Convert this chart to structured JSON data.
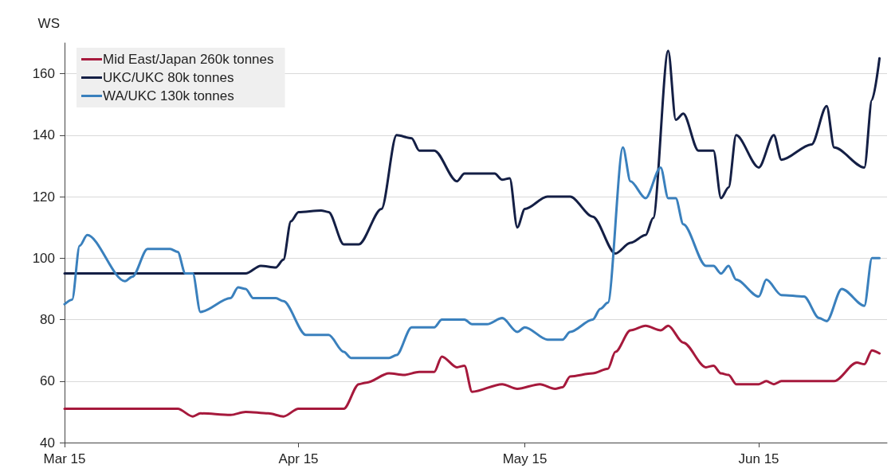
{
  "chart_data": {
    "type": "line",
    "ylabel": "WS",
    "xlim": [
      "2015-03-01",
      "2015-06-18"
    ],
    "xticks": [
      {
        "value": "2015-03-01",
        "label": "Mar 15"
      },
      {
        "value": "2015-04-01",
        "label": "Apr 15"
      },
      {
        "value": "2015-05-01",
        "label": "May 15"
      },
      {
        "value": "2015-06-01",
        "label": "Jun 15"
      }
    ],
    "ylim": [
      40,
      170
    ],
    "yticks": [
      40,
      60,
      80,
      100,
      120,
      140,
      160
    ],
    "grid": "y",
    "legend": "top left",
    "marker": "none",
    "line_style": "solid",
    "series": [
      {
        "name": "Mid East/Japan 260k tonnes",
        "color": "#a6193c",
        "x": [
          "2015-03-01",
          "2015-03-16",
          "2015-03-18",
          "2015-03-19",
          "2015-03-23",
          "2015-03-25",
          "2015-03-28",
          "2015-03-30",
          "2015-04-01",
          "2015-04-07",
          "2015-04-09",
          "2015-04-10",
          "2015-04-13",
          "2015-04-15",
          "2015-04-17",
          "2015-04-19",
          "2015-04-20",
          "2015-04-22",
          "2015-04-23",
          "2015-04-24",
          "2015-04-28",
          "2015-04-30",
          "2015-05-03",
          "2015-05-05",
          "2015-05-06",
          "2015-05-07",
          "2015-05-10",
          "2015-05-12",
          "2015-05-13",
          "2015-05-15",
          "2015-05-17",
          "2015-05-19",
          "2015-05-20",
          "2015-05-22",
          "2015-05-25",
          "2015-05-26",
          "2015-05-27",
          "2015-05-28",
          "2015-05-29",
          "2015-06-01",
          "2015-06-02",
          "2015-06-03",
          "2015-06-04",
          "2015-06-11",
          "2015-06-14",
          "2015-06-15",
          "2015-06-16",
          "2015-06-17"
        ],
        "values": [
          51,
          51,
          48.5,
          49.5,
          49,
          50,
          49.5,
          48.5,
          51,
          51,
          59,
          59.5,
          62.5,
          62,
          63,
          63,
          68,
          64.5,
          65,
          56.5,
          59,
          57.5,
          59,
          57.5,
          58,
          61.5,
          62.5,
          64,
          69.5,
          76.5,
          78,
          76.5,
          78,
          72.5,
          64.5,
          65,
          62.5,
          62,
          59,
          59,
          60,
          59,
          60,
          60,
          66,
          65.5,
          70,
          69
        ]
      },
      {
        "name": "UKC/UKC 80k tonnes",
        "color": "#141f45",
        "x": [
          "2015-03-01",
          "2015-03-25",
          "2015-03-27",
          "2015-03-29",
          "2015-03-30",
          "2015-03-31",
          "2015-04-01",
          "2015-04-04",
          "2015-04-05",
          "2015-04-07",
          "2015-04-09",
          "2015-04-12",
          "2015-04-14",
          "2015-04-16",
          "2015-04-17",
          "2015-04-19",
          "2015-04-22",
          "2015-04-23",
          "2015-04-27",
          "2015-04-28",
          "2015-04-29",
          "2015-04-30",
          "2015-05-01",
          "2015-05-04",
          "2015-05-07",
          "2015-05-10",
          "2015-05-13",
          "2015-05-15",
          "2015-05-17",
          "2015-05-18",
          "2015-05-20",
          "2015-05-21",
          "2015-05-22",
          "2015-05-24",
          "2015-05-26",
          "2015-05-27",
          "2015-05-28",
          "2015-05-29",
          "2015-06-01",
          "2015-06-03",
          "2015-06-04",
          "2015-06-08",
          "2015-06-10",
          "2015-06-11",
          "2015-06-15",
          "2015-06-16",
          "2015-06-17"
        ],
        "values": [
          95,
          95,
          97.5,
          97,
          99.5,
          112,
          115,
          115.5,
          115,
          104.5,
          104.5,
          116,
          140,
          139,
          135,
          135,
          125,
          127.5,
          127.5,
          125.5,
          126,
          110,
          116,
          120,
          120,
          113.5,
          101.5,
          105,
          107.5,
          113,
          167.5,
          145,
          147,
          135,
          135,
          119.5,
          123,
          140,
          129.5,
          140,
          132,
          137,
          149.5,
          136,
          129.5,
          151.5,
          165
        ]
      },
      {
        "name": "WA/UKC 130k tonnes",
        "color": "#3a80bd",
        "x": [
          "2015-03-01",
          "2015-03-02",
          "2015-03-03",
          "2015-03-04",
          "2015-03-09",
          "2015-03-10",
          "2015-03-12",
          "2015-03-15",
          "2015-03-16",
          "2015-03-17",
          "2015-03-18",
          "2015-03-19",
          "2015-03-23",
          "2015-03-24",
          "2015-03-25",
          "2015-03-26",
          "2015-03-29",
          "2015-03-30",
          "2015-04-02",
          "2015-04-05",
          "2015-04-07",
          "2015-04-08",
          "2015-04-13",
          "2015-04-14",
          "2015-04-16",
          "2015-04-19",
          "2015-04-20",
          "2015-04-23",
          "2015-04-24",
          "2015-04-26",
          "2015-04-28",
          "2015-04-30",
          "2015-05-01",
          "2015-05-04",
          "2015-05-06",
          "2015-05-07",
          "2015-05-10",
          "2015-05-11",
          "2015-05-12",
          "2015-05-14",
          "2015-05-15",
          "2015-05-17",
          "2015-05-19",
          "2015-05-20",
          "2015-05-21",
          "2015-05-22",
          "2015-05-25",
          "2015-05-26",
          "2015-05-27",
          "2015-05-28",
          "2015-05-29",
          "2015-06-01",
          "2015-06-02",
          "2015-06-04",
          "2015-06-07",
          "2015-06-09",
          "2015-06-10",
          "2015-06-12",
          "2015-06-15",
          "2015-06-16",
          "2015-06-17"
        ],
        "values": [
          85,
          86.5,
          104,
          107.5,
          92.5,
          94,
          103,
          103,
          102,
          95,
          95,
          82.5,
          87,
          90.5,
          90,
          87,
          87,
          86,
          75,
          75,
          69.5,
          67.5,
          67.5,
          68.5,
          77.5,
          77.5,
          80,
          80,
          78.5,
          78.5,
          80.5,
          76,
          77.5,
          73.5,
          73.5,
          76,
          80,
          83.5,
          85.5,
          136,
          125,
          119.5,
          129.5,
          119.5,
          119.5,
          111,
          97.5,
          97.5,
          95,
          97.5,
          93,
          87.5,
          93,
          88,
          87.5,
          80.5,
          79.5,
          90,
          84.5,
          100,
          100
        ]
      }
    ]
  }
}
